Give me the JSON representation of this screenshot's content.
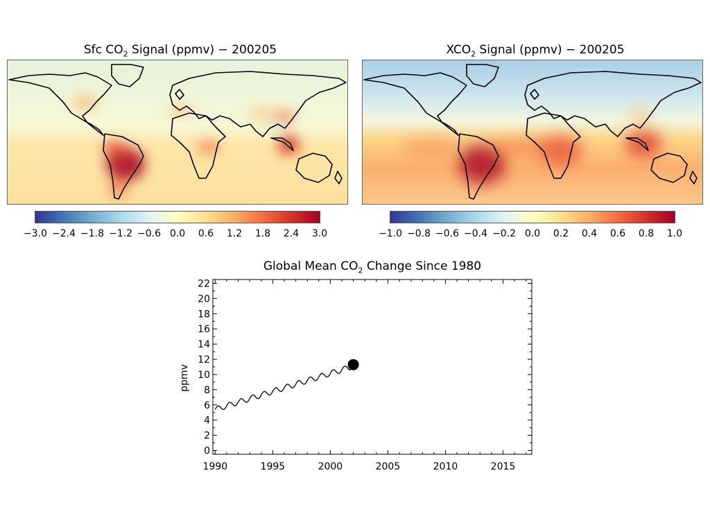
{
  "maps": [
    {
      "title_prefix": "Sfc CO",
      "title_sub": "2",
      "title_suffix": " Signal (ppmv) − 200205",
      "colorbar_ticks": [
        "−3.0",
        "−2.4",
        "−1.8",
        "−1.2",
        "−0.6",
        "0.0",
        "0.6",
        "1.2",
        "1.8",
        "2.4",
        "3.0"
      ],
      "colorbar_range": [
        -3.0,
        3.0
      ]
    },
    {
      "title_prefix": "XCO",
      "title_sub": "2",
      "title_suffix": " Signal (ppmv) − 200205",
      "colorbar_ticks": [
        "−1.0",
        "−0.8",
        "−0.6",
        "−0.4",
        "−0.2",
        "0.0",
        "0.2",
        "0.4",
        "0.6",
        "0.8",
        "1.0"
      ],
      "colorbar_range": [
        -1.0,
        1.0
      ]
    }
  ],
  "colors": {
    "colormap": [
      "#313695",
      "#4575b4",
      "#74add1",
      "#abd9e9",
      "#e0f3f8",
      "#ffffbf",
      "#fee090",
      "#fdae61",
      "#f46d43",
      "#d73027",
      "#a50026"
    ]
  },
  "chart_data": {
    "type": "line",
    "title_prefix": "Global Mean CO",
    "title_sub": "2",
    "title_suffix": " Change Since 1980",
    "ylabel": "ppmv",
    "xlabel": "",
    "xlim": [
      1989.8,
      2017.5
    ],
    "ylim": [
      -0.5,
      22.5
    ],
    "x_ticks": [
      1990,
      1995,
      2000,
      2005,
      2010,
      2015
    ],
    "y_ticks": [
      0,
      2,
      4,
      6,
      8,
      10,
      12,
      14,
      16,
      18,
      20,
      22
    ],
    "series": [
      {
        "start": [
          1990.0,
          5.4
        ],
        "end": [
          2001.8,
          11.0
        ],
        "seasonal_amplitude": 0.35,
        "cycle_years": 1.0
      }
    ],
    "marker": {
      "x": 2002.0,
      "y": 11.3
    },
    "grid": false
  }
}
